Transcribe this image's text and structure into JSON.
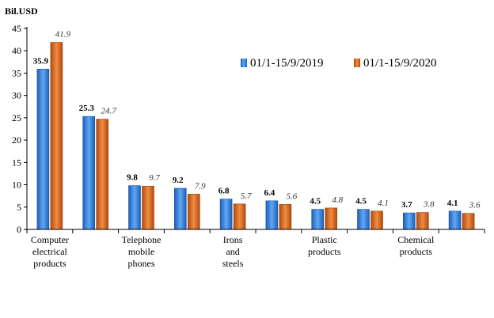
{
  "chart_data": {
    "type": "bar",
    "title": "",
    "unit_label": "Bil.USD",
    "xlabel": "",
    "ylabel": "",
    "ylim": [
      0,
      45
    ],
    "yticks": [
      0,
      5,
      10,
      15,
      20,
      25,
      30,
      35,
      40,
      45
    ],
    "grid": false,
    "legend_position": "top-right",
    "categories": [
      [
        "Computer",
        "electrical",
        "products"
      ],
      [],
      [
        "Telephone",
        "mobile",
        "phones"
      ],
      [],
      [
        "Irons",
        "and",
        "steels"
      ],
      [],
      [
        "Plastic",
        "products"
      ],
      [],
      [
        "Chemical",
        "products"
      ],
      []
    ],
    "series": [
      {
        "name": "01/1-15/9/2019",
        "color": "#2F7FE0",
        "values": [
          35.9,
          25.3,
          9.8,
          9.2,
          6.8,
          6.4,
          4.5,
          4.5,
          3.7,
          4.1
        ],
        "labels": [
          "35.9",
          "25.3",
          "9.8",
          "9.2",
          "6.8",
          "6.4",
          "4.5",
          "4.5",
          "3.7",
          "4.1"
        ]
      },
      {
        "name": "01/1-15/9/2020",
        "color": "#E26A1B",
        "values": [
          41.9,
          24.7,
          9.7,
          7.9,
          5.7,
          5.6,
          4.8,
          4.1,
          3.8,
          3.6
        ],
        "labels": [
          "41.9",
          "24.7",
          "9.7",
          "7.9",
          "5.7",
          "5.6",
          "4.8",
          "4.1",
          "3.8",
          "3.6"
        ]
      }
    ]
  }
}
